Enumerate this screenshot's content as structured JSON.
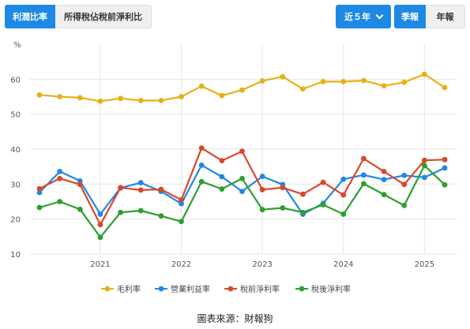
{
  "toolbar": {
    "metric_tab_active": "利潤比率",
    "metric_tab_other": "所得稅佔稅前淨利比",
    "range_label": "近５年",
    "period_quarterly": "季報",
    "period_yearly": "年報"
  },
  "source_text": "圖表來源：財報狗",
  "chart_data": {
    "type": "line",
    "ylabel": "%",
    "ylim": [
      10,
      70
    ],
    "yticks": [
      10,
      20,
      30,
      40,
      50,
      60
    ],
    "grid": true,
    "legend_position": "bottom",
    "x": [
      "2020Q2",
      "2020Q3",
      "2020Q4",
      "2021Q1",
      "2021Q2",
      "2021Q3",
      "2021Q4",
      "2022Q1",
      "2022Q2",
      "2022Q3",
      "2022Q4",
      "2023Q1",
      "2023Q2",
      "2023Q3",
      "2023Q4",
      "2024Q1",
      "2024Q2",
      "2024Q3",
      "2024Q4",
      "2025Q1",
      "2025Q2"
    ],
    "xtick_labels": [
      "2021",
      "2022",
      "2023",
      "2024",
      "2025"
    ],
    "series": [
      {
        "name": "毛利率",
        "color": "#e6b117",
        "values": [
          55.5,
          55.0,
          54.7,
          53.7,
          54.5,
          53.9,
          53.9,
          55.0,
          58.0,
          55.3,
          56.9,
          59.5,
          60.7,
          57.2,
          59.3,
          59.3,
          59.6,
          58.1,
          59.1,
          61.4,
          57.6
        ]
      },
      {
        "name": "營業利益率",
        "color": "#1e88e5",
        "values": [
          27.6,
          33.6,
          30.9,
          21.4,
          28.9,
          30.4,
          27.9,
          24.4,
          35.4,
          32.1,
          27.9,
          32.2,
          29.9,
          21.4,
          24.5,
          31.4,
          32.6,
          31.3,
          32.5,
          31.9,
          34.6
        ]
      },
      {
        "name": "稅前淨利率",
        "color": "#d9482b",
        "values": [
          28.7,
          31.6,
          29.9,
          18.4,
          29.0,
          28.3,
          28.5,
          25.5,
          40.3,
          36.7,
          39.4,
          28.4,
          29.0,
          27.1,
          30.5,
          26.9,
          37.3,
          33.6,
          29.9,
          36.8,
          37.0
        ]
      },
      {
        "name": "稅後淨利率",
        "color": "#2e9e2e",
        "values": [
          23.3,
          25.0,
          22.8,
          14.8,
          21.9,
          22.4,
          20.9,
          19.3,
          30.7,
          28.6,
          31.6,
          22.7,
          23.2,
          21.9,
          24.1,
          21.4,
          30.1,
          27.0,
          23.9,
          35.3,
          29.8
        ]
      }
    ]
  }
}
